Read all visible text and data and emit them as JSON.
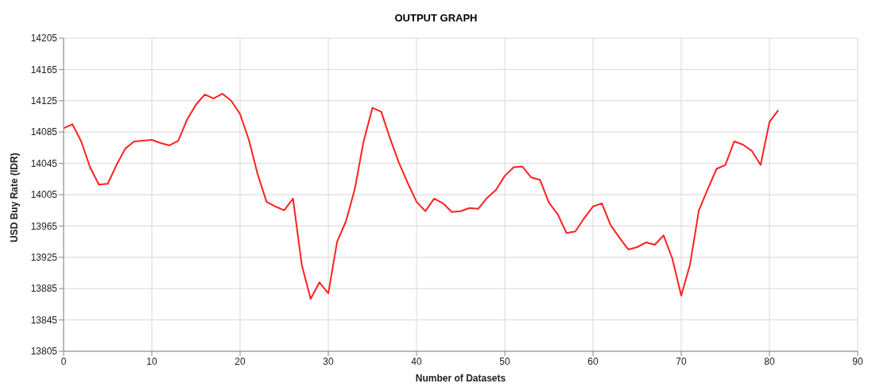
{
  "chart_data": {
    "type": "line",
    "title": "OUTPUT GRAPH",
    "xlabel": "Number of Datasets",
    "ylabel": "USD Buy Rate (IDR)",
    "x": [
      0,
      1,
      2,
      3,
      4,
      5,
      6,
      7,
      8,
      9,
      10,
      11,
      12,
      13,
      14,
      15,
      16,
      17,
      18,
      19,
      20,
      21,
      22,
      23,
      24,
      25,
      26,
      27,
      28,
      29,
      30,
      31,
      32,
      33,
      34,
      35,
      36,
      37,
      38,
      39,
      40,
      41,
      42,
      43,
      44,
      45,
      46,
      47,
      48,
      49,
      50,
      51,
      52,
      53,
      54,
      55,
      56,
      57,
      58,
      59,
      60,
      61,
      62,
      63,
      64,
      65,
      66,
      67,
      68,
      69,
      70,
      71,
      72,
      73,
      74,
      75,
      76,
      77,
      78,
      79,
      80,
      81
    ],
    "series": [
      {
        "color": "#ff2020",
        "values": [
          14090,
          14095,
          14073,
          14040,
          14018,
          14019,
          14043,
          14064,
          14073,
          14074,
          14075,
          14071,
          14068,
          14074,
          14101,
          14120,
          14133,
          14128,
          14134,
          14125,
          14108,
          14075,
          14031,
          13996,
          13990,
          13985,
          14000,
          13915,
          13872,
          13893,
          13879,
          13945,
          13971,
          14012,
          14073,
          14116,
          14111,
          14077,
          14046,
          14020,
          13996,
          13984,
          14000,
          13994,
          13983,
          13984,
          13988,
          13987,
          14001,
          14011,
          14029,
          14040,
          14041,
          14027,
          14024,
          13995,
          13980,
          13956,
          13958,
          13975,
          13990,
          13994,
          13966,
          13950,
          13935,
          13938,
          13944,
          13941,
          13953,
          13923,
          13876,
          13916,
          13985,
          14012,
          14038,
          14043,
          14073,
          14069,
          14061,
          14043,
          14098,
          14113
        ]
      }
    ],
    "xlim": [
      0,
      90
    ],
    "xticks": [
      0,
      10,
      20,
      30,
      40,
      50,
      60,
      70,
      80,
      90
    ],
    "ylim": [
      13805,
      14205
    ],
    "yticks": [
      13805,
      13845,
      13885,
      13925,
      13965,
      14005,
      14045,
      14085,
      14125,
      14165,
      14205
    ],
    "grid": true,
    "marker": "none",
    "line_style": "solid"
  }
}
